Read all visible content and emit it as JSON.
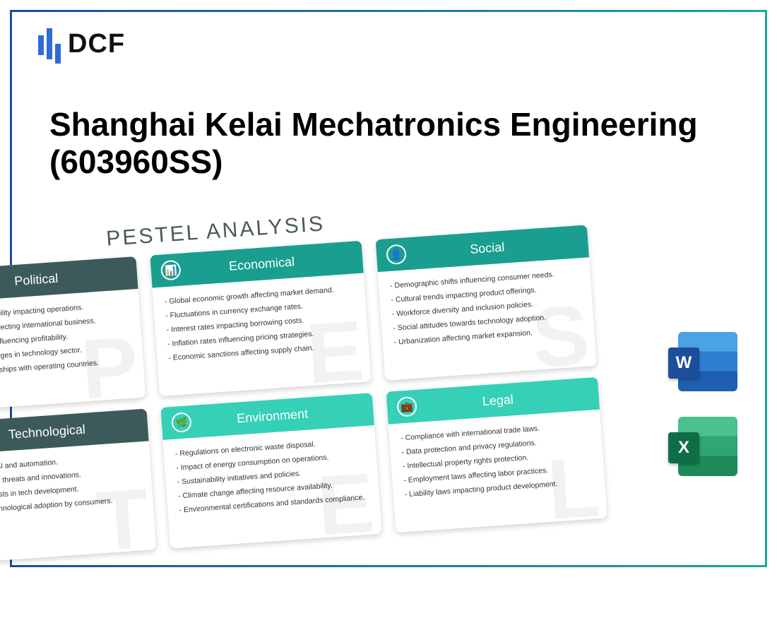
{
  "logo": {
    "text": "DCF"
  },
  "title": "Shanghai Kelai Mechatronics Engineering (603960SS)",
  "pestel": {
    "heading": "PESTEL ANALYSIS",
    "cards": [
      {
        "key": "political",
        "label": "Political",
        "watermark": "P",
        "tone": "dark",
        "icon": "🏛",
        "items": [
          "Government stability impacting operations.",
          "Trade policies affecting international business.",
          "Taxation rates influencing profitability.",
          "Regulatory changes in technology sector.",
          "Political relationships with operating countries."
        ]
      },
      {
        "key": "economical",
        "label": "Economical",
        "watermark": "E",
        "tone": "teal",
        "icon": "📊",
        "items": [
          "Global economic growth affecting market demand.",
          "Fluctuations in currency exchange rates.",
          "Interest rates impacting borrowing costs.",
          "Inflation rates influencing pricing strategies.",
          "Economic sanctions affecting supply chain."
        ]
      },
      {
        "key": "social",
        "label": "Social",
        "watermark": "S",
        "tone": "teal",
        "icon": "👤",
        "items": [
          "Demographic shifts influencing consumer needs.",
          "Cultural trends impacting product offerings.",
          "Workforce diversity and inclusion policies.",
          "Social attitudes towards technology adoption.",
          "Urbanization affecting market expansion."
        ]
      },
      {
        "key": "technological",
        "label": "Technological",
        "watermark": "T",
        "tone": "dark",
        "icon": "⚙",
        "items": [
          "Advances in AI and automation.",
          "Cybersecurity threats and innovations.",
          "High R&D costs in tech development.",
          "Speed of technological adoption by consumers."
        ]
      },
      {
        "key": "environment",
        "label": "Environment",
        "watermark": "E",
        "tone": "mint",
        "icon": "🌿",
        "items": [
          "Regulations on electronic waste disposal.",
          "Impact of energy consumption on operations.",
          "Sustainability initiatives and policies.",
          "Climate change affecting resource availability.",
          "Environmental certifications and standards compliance."
        ]
      },
      {
        "key": "legal",
        "label": "Legal",
        "watermark": "L",
        "tone": "mint",
        "icon": "💼",
        "items": [
          "Compliance with international trade laws.",
          "Data protection and privacy regulations.",
          "Intellectual property rights protection.",
          "Employment laws affecting labor practices.",
          "Liability laws impacting product development."
        ]
      }
    ]
  },
  "apps": {
    "word": "W",
    "excel": "X"
  },
  "colors": {
    "border_start": "#1e4ba0",
    "border_end": "#1aa795",
    "dark_head": "#3d5a5a",
    "teal_head": "#1a9e8f",
    "mint_head": "#35d0b6",
    "word_badge": "#1b4e9b",
    "excel_badge": "#0f6e46"
  }
}
